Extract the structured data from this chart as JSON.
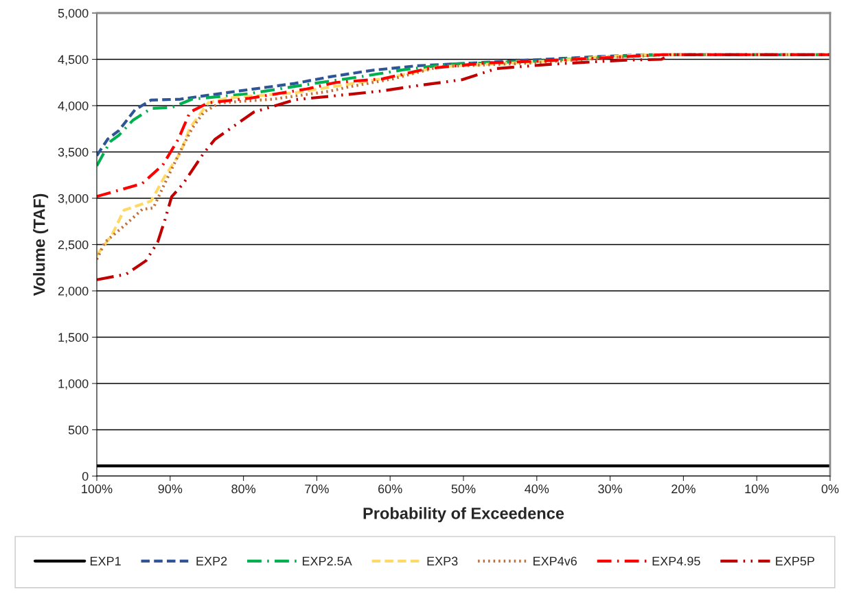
{
  "chart_data": {
    "type": "line",
    "xlabel": "Probability of Exceedence",
    "ylabel": "Volume (TAF)",
    "xlim": [
      100,
      0
    ],
    "xticks": [
      {
        "value": 100,
        "label": "100%"
      },
      {
        "value": 90,
        "label": "90%"
      },
      {
        "value": 80,
        "label": "80%"
      },
      {
        "value": 70,
        "label": "70%"
      },
      {
        "value": 60,
        "label": "60%"
      },
      {
        "value": 50,
        "label": "50%"
      },
      {
        "value": 40,
        "label": "40%"
      },
      {
        "value": 30,
        "label": "30%"
      },
      {
        "value": 20,
        "label": "20%"
      },
      {
        "value": 10,
        "label": "10%"
      },
      {
        "value": 0,
        "label": "0%"
      }
    ],
    "ylim": [
      0,
      5000
    ],
    "yticks": [
      0,
      500,
      {
        "value": 1000,
        "label": "1,000"
      },
      {
        "value": 1500,
        "label": "1,500"
      },
      {
        "value": 2000,
        "label": "2,000"
      },
      {
        "value": 2500,
        "label": "2,500"
      },
      {
        "value": 3000,
        "label": "3,000"
      },
      {
        "value": 3500,
        "label": "3,500"
      },
      {
        "value": 4000,
        "label": "4,000"
      },
      {
        "value": 4500,
        "label": "4,500"
      },
      {
        "value": 5000,
        "label": "5,000"
      }
    ],
    "grid": "y",
    "legend": "bottom",
    "marker": "none",
    "series": [
      {
        "name": "EXP1",
        "color": "#000000",
        "line_style": "solid",
        "x": [
          100,
          0
        ],
        "values": [
          110,
          110
        ]
      },
      {
        "name": "EXP2",
        "color": "#2f5597",
        "line_style": "dashed",
        "x": [
          100,
          98.5,
          97,
          94.8,
          92.6,
          88.6,
          82.3,
          73,
          68.3,
          62.6,
          56.4,
          43.9,
          31.5,
          25,
          0
        ],
        "values": [
          3460,
          3640,
          3730,
          3955,
          4060,
          4070,
          4140,
          4240,
          4310,
          4380,
          4430,
          4480,
          4530,
          4550,
          4550
        ]
      },
      {
        "name": "EXP2.5A",
        "color": "#00b050",
        "line_style": "dashdot",
        "x": [
          100,
          98.2,
          97,
          95.1,
          92.6,
          89.8,
          87,
          79.2,
          70.4,
          64.2,
          58,
          51.7,
          40,
          30,
          22,
          0
        ],
        "values": [
          3350,
          3610,
          3680,
          3840,
          3970,
          3980,
          4070,
          4130,
          4240,
          4310,
          4390,
          4450,
          4480,
          4530,
          4550,
          4550
        ]
      },
      {
        "name": "EXP3",
        "color": "#ffd966",
        "line_style": "dashed",
        "x": [
          100,
          97.9,
          96.3,
          92.6,
          90.7,
          88.6,
          87.3,
          84.8,
          82.3,
          72.9,
          65.8,
          59.6,
          53.3,
          40.8,
          30,
          24,
          0
        ],
        "values": [
          2385,
          2610,
          2870,
          2970,
          3240,
          3490,
          3760,
          4030,
          4080,
          4140,
          4230,
          4310,
          4420,
          4470,
          4530,
          4550,
          4550
        ]
      },
      {
        "name": "EXP4v6",
        "color": "#c0703a",
        "line_style": "dotted",
        "x": [
          100,
          98.9,
          96.3,
          93.8,
          92.3,
          90.4,
          88.6,
          87,
          85.4,
          83.2,
          76,
          68.3,
          65.8,
          59.6,
          53.3,
          40.8,
          30,
          22,
          0
        ],
        "values": [
          2340,
          2525,
          2700,
          2880,
          2895,
          3215,
          3510,
          3755,
          3930,
          4030,
          4070,
          4155,
          4200,
          4290,
          4420,
          4460,
          4520,
          4550,
          4550
        ]
      },
      {
        "name": "EXP4.95",
        "color": "#ff0000",
        "line_style": "dashdot",
        "x": [
          100,
          97.9,
          93.8,
          91,
          88.9,
          87.3,
          84.8,
          79.2,
          71.4,
          67.4,
          61,
          54.9,
          47,
          40,
          30,
          23,
          0
        ],
        "values": [
          3020,
          3065,
          3160,
          3360,
          3635,
          3930,
          4030,
          4080,
          4180,
          4250,
          4290,
          4400,
          4460,
          4480,
          4520,
          4550,
          4550
        ]
      },
      {
        "name": "EXP5P",
        "color": "#c00000",
        "line_style": "dashdotdot",
        "x": [
          100,
          96,
          93.3,
          91.7,
          90.7,
          89.8,
          88.2,
          85.4,
          83.9,
          78.6,
          72.9,
          68.3,
          61,
          56.4,
          50.2,
          45.5,
          37.6,
          28.3,
          23,
          21.8,
          0
        ],
        "values": [
          2120,
          2180,
          2325,
          2525,
          2770,
          3015,
          3160,
          3490,
          3635,
          3930,
          4065,
          4100,
          4160,
          4215,
          4280,
          4400,
          4450,
          4490,
          4500,
          4550,
          4550
        ]
      }
    ]
  }
}
